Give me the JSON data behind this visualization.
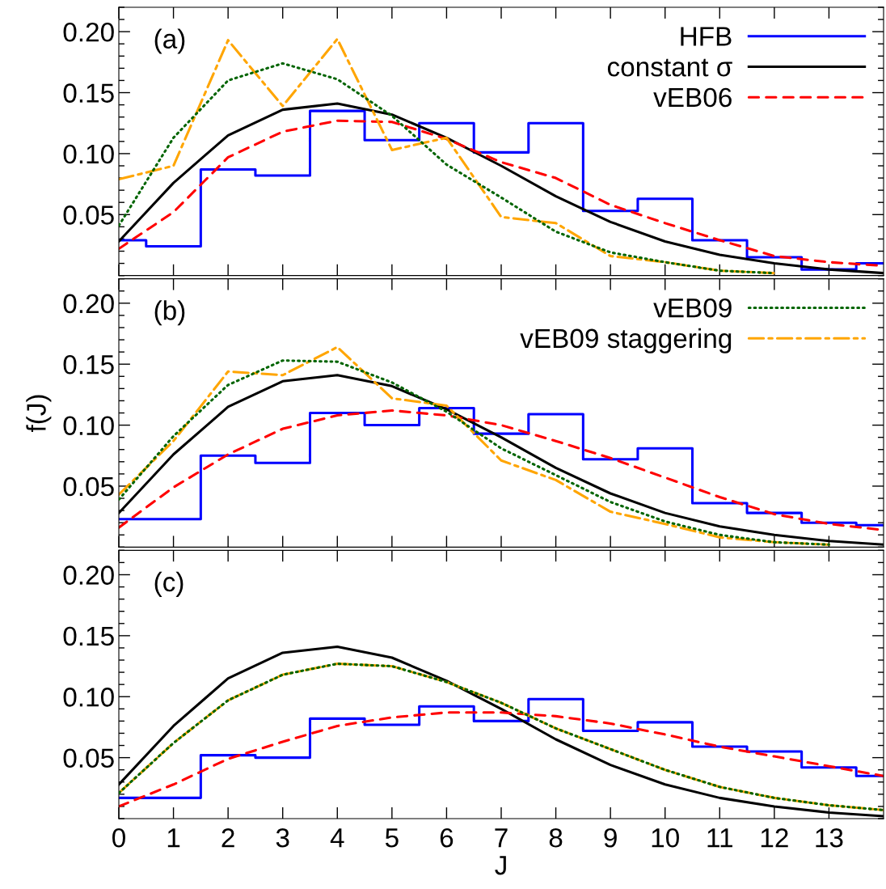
{
  "chart_data": [
    {
      "type": "line",
      "annotations": [
        "(a)"
      ],
      "x": [
        0,
        1,
        2,
        3,
        4,
        5,
        6,
        7,
        8,
        9,
        10,
        11,
        12,
        13,
        14
      ],
      "xlim": [
        0,
        14
      ],
      "xticks": [
        0,
        1,
        2,
        3,
        4,
        5,
        6,
        7,
        8,
        9,
        10,
        11,
        12,
        13
      ],
      "ylim": [
        0,
        0.22
      ],
      "yticks": [
        {
          "value": 0.05,
          "label": "0.05"
        },
        {
          "value": 0.1,
          "label": "0.10"
        },
        {
          "value": 0.15,
          "label": "0.15"
        },
        {
          "value": 0.2,
          "label": "0.20"
        }
      ],
      "tick_labels": "y",
      "legend": "top right",
      "grid": false,
      "series": [
        {
          "name": "HFB",
          "type": "step",
          "color": "#0000ff",
          "line_style": "solid",
          "values": [
            0.029,
            0.024,
            0.087,
            0.082,
            0.135,
            0.111,
            0.125,
            0.101,
            0.125,
            0.053,
            0.063,
            0.029,
            0.015,
            0.005,
            0.01
          ]
        },
        {
          "name": "constant σ",
          "color": "#000000",
          "line_style": "solid",
          "values": [
            0.028,
            0.076,
            0.115,
            0.136,
            0.141,
            0.132,
            0.113,
            0.09,
            0.065,
            0.044,
            0.028,
            0.017,
            0.01,
            0.005,
            0.002
          ]
        },
        {
          "name": "vEB06",
          "color": "#ff0000",
          "line_style": "dashed",
          "values": [
            0.022,
            0.052,
            0.097,
            0.118,
            0.127,
            0.126,
            0.112,
            0.093,
            0.08,
            0.058,
            0.043,
            0.029,
            0.016,
            0.011,
            0.008
          ]
        },
        {
          "color": "#006400",
          "line_style": "dotted",
          "values": [
            0.041,
            0.113,
            0.16,
            0.174,
            0.161,
            0.131,
            0.091,
            0.064,
            0.036,
            0.019,
            0.011,
            0.004,
            0.002,
            null,
            null
          ]
        },
        {
          "color": "#ffa500",
          "line_style": "dashdot",
          "values": [
            0.079,
            0.09,
            0.193,
            0.139,
            0.194,
            0.103,
            0.113,
            0.048,
            0.043,
            0.016,
            0.011,
            0.004,
            0.002,
            null,
            null
          ]
        }
      ]
    },
    {
      "type": "line",
      "annotations": [
        "(b)"
      ],
      "ylabel": "f(J)",
      "x": [
        0,
        1,
        2,
        3,
        4,
        5,
        6,
        7,
        8,
        9,
        10,
        11,
        12,
        13,
        14
      ],
      "xlim": [
        0,
        14
      ],
      "xticks": [
        0,
        1,
        2,
        3,
        4,
        5,
        6,
        7,
        8,
        9,
        10,
        11,
        12,
        13
      ],
      "ylim": [
        0,
        0.22
      ],
      "yticks": [
        {
          "value": 0.05,
          "label": "0.05"
        },
        {
          "value": 0.1,
          "label": "0.10"
        },
        {
          "value": 0.15,
          "label": "0.15"
        },
        {
          "value": 0.2,
          "label": "0.20"
        }
      ],
      "tick_labels": "y",
      "legend": "top right",
      "grid": false,
      "series": [
        {
          "type": "step",
          "color": "#0000ff",
          "line_style": "solid",
          "values": [
            0.023,
            0.023,
            0.075,
            0.069,
            0.11,
            0.1,
            0.114,
            0.093,
            0.109,
            0.072,
            0.081,
            0.036,
            0.028,
            0.02,
            0.018
          ]
        },
        {
          "color": "#000000",
          "line_style": "solid",
          "values": [
            0.028,
            0.076,
            0.115,
            0.136,
            0.141,
            0.132,
            0.113,
            0.09,
            0.065,
            0.044,
            0.028,
            0.017,
            0.01,
            0.005,
            0.002
          ]
        },
        {
          "color": "#ff0000",
          "line_style": "dashed",
          "values": [
            0.016,
            0.049,
            0.076,
            0.097,
            0.108,
            0.112,
            0.108,
            0.1,
            0.087,
            0.073,
            0.057,
            0.041,
            0.027,
            0.019,
            0.014
          ]
        },
        {
          "name": "vEB09",
          "color": "#006400",
          "line_style": "dotted",
          "values": [
            0.039,
            0.091,
            0.133,
            0.153,
            0.152,
            0.135,
            0.111,
            0.081,
            0.059,
            0.037,
            0.021,
            0.01,
            0.004,
            0.002,
            null
          ]
        },
        {
          "name": "vEB09 staggering",
          "color": "#ffa500",
          "line_style": "dashdot",
          "values": [
            0.043,
            0.087,
            0.144,
            0.141,
            0.164,
            0.122,
            0.116,
            0.071,
            0.055,
            0.029,
            0.019,
            0.008,
            0.004,
            0.002,
            null
          ]
        }
      ]
    },
    {
      "type": "line",
      "annotations": [
        "(c)"
      ],
      "xlabel": "J",
      "x": [
        0,
        1,
        2,
        3,
        4,
        5,
        6,
        7,
        8,
        9,
        10,
        11,
        12,
        13,
        14
      ],
      "xlim": [
        0,
        14
      ],
      "xticks": [
        0,
        1,
        2,
        3,
        4,
        5,
        6,
        7,
        8,
        9,
        10,
        11,
        12,
        13
      ],
      "ylim": [
        0,
        0.22
      ],
      "yticks": [
        {
          "value": 0.05,
          "label": "0.05"
        },
        {
          "value": 0.1,
          "label": "0.10"
        },
        {
          "value": 0.15,
          "label": "0.15"
        },
        {
          "value": 0.2,
          "label": "0.20"
        }
      ],
      "grid": false,
      "series": [
        {
          "type": "step",
          "color": "#0000ff",
          "line_style": "solid",
          "values": [
            0.017,
            0.017,
            0.052,
            0.05,
            0.082,
            0.077,
            0.092,
            0.08,
            0.098,
            0.072,
            0.079,
            0.059,
            0.055,
            0.042,
            0.035
          ]
        },
        {
          "color": "#000000",
          "line_style": "solid",
          "values": [
            0.028,
            0.076,
            0.115,
            0.136,
            0.141,
            0.132,
            0.113,
            0.09,
            0.065,
            0.044,
            0.028,
            0.017,
            0.01,
            0.005,
            0.002
          ]
        },
        {
          "color": "#ff0000",
          "line_style": "dashed",
          "values": [
            0.01,
            0.028,
            0.049,
            0.063,
            0.076,
            0.083,
            0.087,
            0.087,
            0.084,
            0.078,
            0.069,
            0.059,
            0.051,
            0.043,
            0.035
          ]
        },
        {
          "color": "#006400",
          "line_style": "dotted",
          "values": [
            0.021,
            0.062,
            0.097,
            0.118,
            0.127,
            0.125,
            0.112,
            0.095,
            0.074,
            0.057,
            0.04,
            0.026,
            0.017,
            0.011,
            0.007
          ]
        },
        {
          "color": "#ffa500",
          "line_style": "dashdot",
          "values": [
            0.021,
            0.062,
            0.097,
            0.118,
            0.127,
            0.125,
            0.112,
            0.095,
            0.074,
            0.057,
            0.04,
            0.026,
            0.017,
            0.011,
            0.007
          ]
        }
      ]
    }
  ]
}
